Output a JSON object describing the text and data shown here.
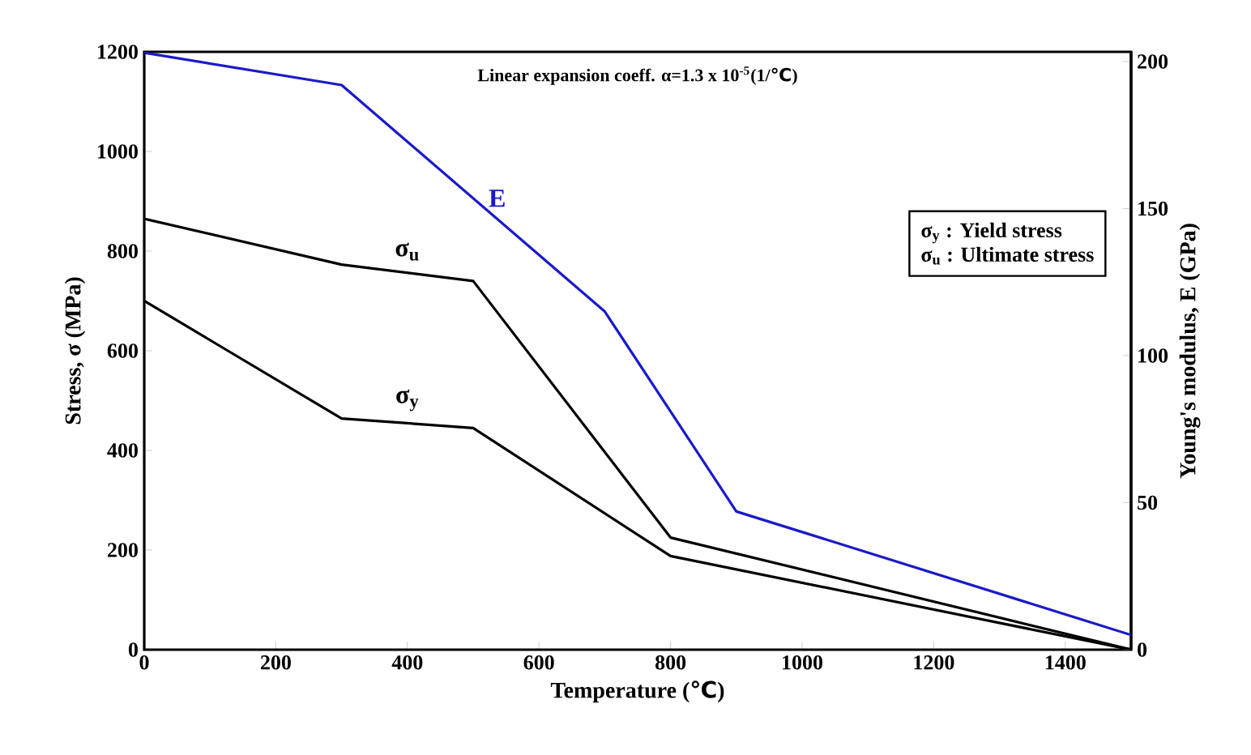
{
  "chart_data": {
    "type": "line",
    "x": [
      0,
      300,
      500,
      800,
      1500
    ],
    "series": [
      {
        "name": "σ$_{u}$",
        "color": "#000000",
        "values": [
          865,
          773,
          740,
          225,
          0
        ]
      },
      {
        "name": "σ$_{y}$",
        "color": "#000000",
        "values": [
          700,
          464,
          445,
          188,
          0
        ]
      },
      {
        "name": "E",
        "color": "#1a1ac8",
        "axis": "y2",
        "x": [
          0,
          300,
          700,
          900,
          1500
        ],
        "values": [
          203,
          192,
          115,
          47,
          5
        ]
      }
    ],
    "xlabel": "Temperature (℃)",
    "ylabel": "Stress, σ (MPa)",
    "y2label": "Young's modulus, E (GPa)",
    "xlim": [
      0,
      1500
    ],
    "xticks": [
      0,
      200,
      400,
      600,
      800,
      1000,
      1200,
      1400
    ],
    "ylim": [
      0,
      1200
    ],
    "yticks": [
      0,
      200,
      400,
      600,
      800,
      1000,
      1200
    ],
    "y2lim": [
      0,
      203.3
    ],
    "y2ticks": [
      0,
      50,
      100,
      150,
      200
    ],
    "annotations": [
      "Linear expansion coeff. α=1.3 x 10$^{-5}$(1/℃)",
      "σ$_{y}$ : Yield stress",
      "σ$_{u}$ : Ultimate stress"
    ]
  }
}
